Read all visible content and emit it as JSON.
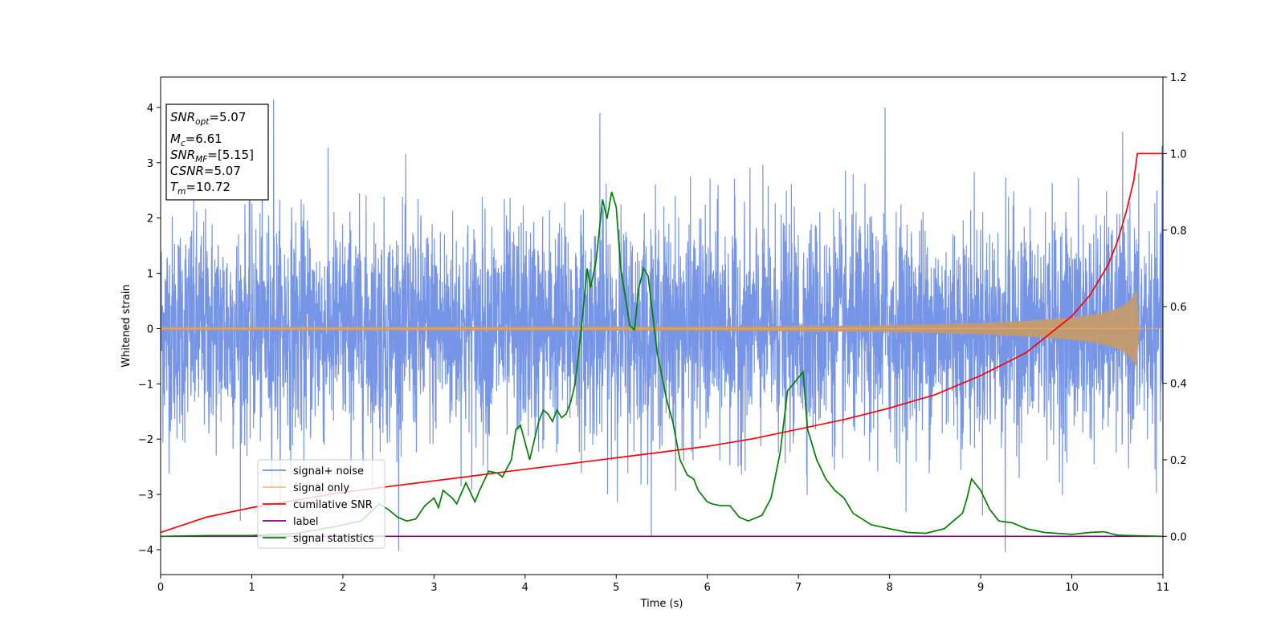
{
  "chart_data": {
    "type": "line",
    "xlabel": "Time (s)",
    "ylabel": "Whitened strain",
    "xlim": [
      0,
      11
    ],
    "ylim": [
      -4.45,
      4.55
    ],
    "y2lim": [
      -0.1,
      1.2
    ],
    "x_ticks": [
      "0",
      "1",
      "2",
      "3",
      "4",
      "5",
      "6",
      "7",
      "8",
      "9",
      "10",
      "11"
    ],
    "y_ticks": [
      "4",
      "3",
      "2",
      "1",
      "0",
      "−1",
      "−2",
      "−3",
      "−4"
    ],
    "y2_ticks": [
      "1.2",
      "1.0",
      "0.8",
      "0.6",
      "0.4",
      "0.2",
      "0.0"
    ],
    "grid": false,
    "legend_position": "lower-left",
    "legend": [
      {
        "label": "signal+ noise",
        "color": "#6f8fe6"
      },
      {
        "label": "signal only",
        "color": "#f5c07a"
      },
      {
        "label": "cumilative SNR",
        "color": "#ff0000"
      },
      {
        "label": "label",
        "color": "#800080"
      },
      {
        "label": "signal statistics",
        "color": "#008000"
      }
    ],
    "annotation": [
      {
        "main": "SNR",
        "sub": "opt",
        "value": "=5.07",
        "italic": true
      },
      {
        "main": "M",
        "sub": "c",
        "value": "=6.61",
        "italic": true
      },
      {
        "main": "SNR",
        "sub": "MF",
        "value": "=[5.15]",
        "italic": true
      },
      {
        "main": "CSNR",
        "sub": "",
        "value": "=5.07",
        "italic": true
      },
      {
        "main": "T",
        "sub": "m",
        "value": "=10.72",
        "italic": true
      }
    ],
    "series": [
      {
        "name": "signal+ noise",
        "axis": "left",
        "color": "#6f8fe6",
        "description_stats": {
          "min": -4.05,
          "max": 4.15,
          "typical_band": [
            -2.4,
            2.4
          ]
        },
        "notable_peaks": [
          [
            1.24,
            4.15
          ],
          [
            4.82,
            3.9
          ],
          [
            7.95,
            4.0
          ],
          [
            9.27,
            -4.05
          ]
        ]
      },
      {
        "name": "signal only",
        "axis": "left",
        "color": "#f5c07a",
        "envelope": [
          [
            0,
            0.03
          ],
          [
            6,
            0.04
          ],
          [
            8,
            0.06
          ],
          [
            9,
            0.1
          ],
          [
            9.5,
            0.14
          ],
          [
            10,
            0.2
          ],
          [
            10.3,
            0.27
          ],
          [
            10.5,
            0.36
          ],
          [
            10.6,
            0.45
          ],
          [
            10.68,
            0.6
          ],
          [
            10.72,
            0.72
          ],
          [
            10.73,
            0
          ],
          [
            11,
            0
          ]
        ]
      },
      {
        "name": "cumilative SNR",
        "axis": "right",
        "color": "#ff0000",
        "x": [
          0,
          0.5,
          1,
          1.5,
          2,
          2.5,
          3,
          3.5,
          4,
          4.5,
          5,
          5.5,
          6,
          6.5,
          7,
          7.5,
          8,
          8.5,
          9,
          9.5,
          10,
          10.2,
          10.4,
          10.5,
          10.6,
          10.68,
          10.72,
          11
        ],
        "y": [
          0.01,
          0.05,
          0.075,
          0.095,
          0.115,
          0.13,
          0.145,
          0.16,
          0.175,
          0.19,
          0.205,
          0.22,
          0.235,
          0.255,
          0.28,
          0.305,
          0.335,
          0.37,
          0.42,
          0.48,
          0.575,
          0.63,
          0.71,
          0.77,
          0.85,
          0.93,
          1.0,
          1.0
        ]
      },
      {
        "name": "label",
        "axis": "right",
        "color": "#800080",
        "x": [
          0,
          11
        ],
        "y": [
          0.0,
          0.0
        ]
      },
      {
        "name": "signal statistics",
        "axis": "right",
        "color": "#008000",
        "x": [
          0,
          0.5,
          1,
          1.5,
          1.9,
          2.2,
          2.4,
          2.5,
          2.6,
          2.7,
          2.8,
          2.9,
          3.0,
          3.05,
          3.1,
          3.2,
          3.25,
          3.35,
          3.45,
          3.5,
          3.6,
          3.7,
          3.75,
          3.85,
          3.9,
          3.95,
          4.05,
          4.15,
          4.2,
          4.25,
          4.3,
          4.35,
          4.4,
          4.45,
          4.5,
          4.55,
          4.62,
          4.68,
          4.72,
          4.78,
          4.85,
          4.9,
          4.95,
          5.0,
          5.05,
          5.15,
          5.2,
          5.25,
          5.3,
          5.35,
          5.45,
          5.55,
          5.62,
          5.7,
          5.78,
          5.85,
          5.9,
          6.0,
          6.05,
          6.15,
          6.25,
          6.35,
          6.45,
          6.6,
          6.7,
          6.8,
          6.88,
          6.95,
          7.05,
          7.1,
          7.2,
          7.3,
          7.4,
          7.5,
          7.6,
          7.8,
          8.0,
          8.2,
          8.4,
          8.6,
          8.7,
          8.8,
          8.85,
          8.9,
          9.0,
          9.1,
          9.2,
          9.35,
          9.5,
          9.7,
          10.0,
          10.2,
          10.35,
          10.5,
          11
        ],
        "y": [
          0.0,
          0.002,
          0.002,
          0.008,
          0.025,
          0.04,
          0.085,
          0.07,
          0.05,
          0.04,
          0.045,
          0.08,
          0.1,
          0.075,
          0.12,
          0.1,
          0.085,
          0.14,
          0.09,
          0.12,
          0.17,
          0.165,
          0.155,
          0.2,
          0.28,
          0.29,
          0.2,
          0.3,
          0.33,
          0.32,
          0.3,
          0.33,
          0.31,
          0.32,
          0.35,
          0.4,
          0.55,
          0.7,
          0.65,
          0.72,
          0.88,
          0.83,
          0.9,
          0.86,
          0.7,
          0.55,
          0.54,
          0.65,
          0.7,
          0.68,
          0.48,
          0.36,
          0.3,
          0.2,
          0.16,
          0.15,
          0.12,
          0.09,
          0.085,
          0.08,
          0.08,
          0.05,
          0.04,
          0.055,
          0.1,
          0.22,
          0.38,
          0.4,
          0.43,
          0.28,
          0.2,
          0.15,
          0.12,
          0.1,
          0.06,
          0.03,
          0.02,
          0.01,
          0.008,
          0.02,
          0.04,
          0.06,
          0.1,
          0.15,
          0.12,
          0.07,
          0.04,
          0.035,
          0.02,
          0.01,
          0.005,
          0.01,
          0.012,
          0.003,
          0.0
        ]
      }
    ]
  }
}
